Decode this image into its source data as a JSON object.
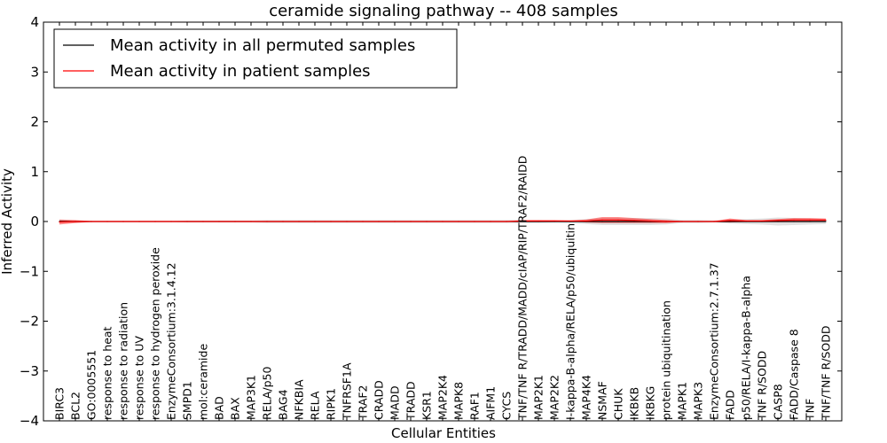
{
  "chart_data": {
    "type": "line",
    "title": "ceramide signaling pathway -- 408 samples",
    "xlabel": "Cellular Entities",
    "ylabel": "Inferred Activity",
    "ylim": [
      -4,
      4
    ],
    "yticks": [
      4,
      3,
      2,
      1,
      0,
      -1,
      -2,
      -3,
      -4
    ],
    "ytick_labels": [
      "4",
      "3",
      "2",
      "1",
      "0",
      "−1",
      "−2",
      "−3",
      "−4"
    ],
    "legend_position": "top-left",
    "categories": [
      "BIRC3",
      "BCL2",
      "GO:0005551",
      "response to heat",
      "response to radiation",
      "response to UV",
      "response to hydrogen peroxide",
      "EnzymeConsortium:3.1.4.12",
      "SMPD1",
      "mol:ceramide",
      "BAD",
      "BAX",
      "MAP3K1",
      "RELA/p50",
      "BAG4",
      "NFKBIA",
      "RELA",
      "RIPK1",
      "TNFRSF1A",
      "TRAF2",
      "CRADD",
      "MADD",
      "TRADD",
      "KSR1",
      "MAP2K4",
      "MAPK8",
      "RAF1",
      "AIFM1",
      "CYCS",
      "TNF/TNF R/TRADD/MADD/cIAP/RIP/TRAF2/RAIDD",
      "MAP2K1",
      "MAP2K2",
      "I-kappa-B-alpha/RELA/p50/ubiquitin",
      "MAP4K4",
      "NSMAF",
      "CHUK",
      "IKBKB",
      "IKBKG",
      "protein ubiquitination",
      "MAPK1",
      "MAPK3",
      "EnzymeConsortium:2.7.1.37",
      "FADD",
      "p50/RELA/I-kappa-B-alpha",
      "TNF R/SODD",
      "CASP8",
      "FADD/Caspase 8",
      "TNF",
      "TNF/TNF R/SODD"
    ],
    "series": [
      {
        "name": "Mean activity in all permuted samples",
        "color": "#000000",
        "values": [
          0.0,
          0.0,
          0.0,
          0.0,
          0.0,
          0.0,
          0.0,
          0.0,
          0.0,
          0.0,
          0.0,
          0.0,
          0.0,
          0.0,
          0.0,
          0.0,
          0.0,
          0.0,
          0.0,
          0.0,
          0.0,
          0.0,
          0.0,
          0.0,
          0.0,
          0.0,
          0.0,
          0.0,
          0.0,
          0.0,
          0.0,
          0.0,
          0.0,
          0.0,
          0.0,
          0.0,
          0.0,
          0.0,
          0.0,
          0.0,
          0.0,
          0.0,
          0.0,
          0.0,
          0.0,
          0.0,
          0.0,
          0.0,
          0.0
        ],
        "band_half_width": [
          0.02,
          0.02,
          0.01,
          0.01,
          0.01,
          0.01,
          0.01,
          0.01,
          0.02,
          0.02,
          0.02,
          0.02,
          0.02,
          0.03,
          0.03,
          0.03,
          0.03,
          0.03,
          0.03,
          0.03,
          0.03,
          0.03,
          0.03,
          0.03,
          0.03,
          0.03,
          0.03,
          0.03,
          0.03,
          0.03,
          0.03,
          0.02,
          0.03,
          0.05,
          0.07,
          0.07,
          0.07,
          0.07,
          0.06,
          0.03,
          0.03,
          0.02,
          0.04,
          0.05,
          0.06,
          0.08,
          0.07,
          0.06,
          0.05
        ]
      },
      {
        "name": "Mean activity in patient samples",
        "color": "#ff0000",
        "values": [
          -0.01,
          0.0,
          0.0,
          0.0,
          0.0,
          0.0,
          0.0,
          0.0,
          0.0,
          0.0,
          0.0,
          0.0,
          0.0,
          0.0,
          0.0,
          0.0,
          0.0,
          0.0,
          0.0,
          0.0,
          0.0,
          0.0,
          0.0,
          0.0,
          0.0,
          0.0,
          0.0,
          0.0,
          0.0,
          0.01,
          0.01,
          0.01,
          0.01,
          0.01,
          0.03,
          0.03,
          0.02,
          0.01,
          0.0,
          0.0,
          0.0,
          0.0,
          0.02,
          0.01,
          0.01,
          0.02,
          0.03,
          0.03,
          0.03
        ],
        "band_half_width": [
          0.05,
          0.03,
          0.01,
          0.01,
          0.01,
          0.01,
          0.01,
          0.01,
          0.01,
          0.01,
          0.01,
          0.01,
          0.01,
          0.01,
          0.01,
          0.01,
          0.01,
          0.01,
          0.01,
          0.01,
          0.01,
          0.01,
          0.01,
          0.01,
          0.01,
          0.01,
          0.01,
          0.01,
          0.01,
          0.02,
          0.02,
          0.02,
          0.01,
          0.03,
          0.06,
          0.06,
          0.05,
          0.04,
          0.03,
          0.01,
          0.01,
          0.01,
          0.04,
          0.02,
          0.02,
          0.03,
          0.04,
          0.04,
          0.03
        ]
      }
    ]
  }
}
